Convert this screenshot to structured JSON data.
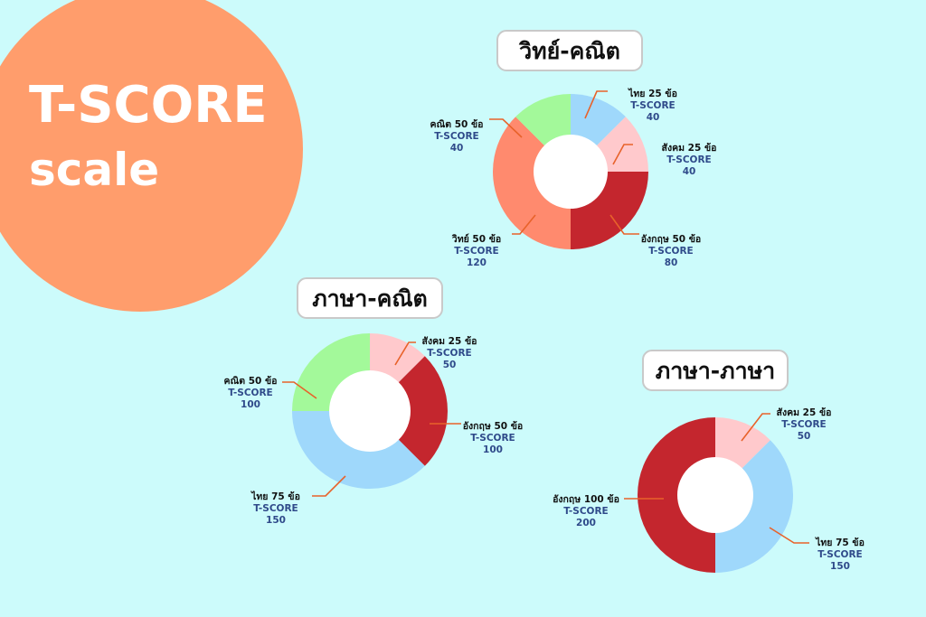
{
  "colors": {
    "background": "#ccfbfb",
    "hero": "#ff9d6c",
    "leader": "#e8622a",
    "thai": "#9fd8fb",
    "social": "#ffc9cc",
    "english": "#c4262e",
    "science": "#ff8a6e",
    "math": "#a3f99a",
    "label_metric": "#2f4a8a"
  },
  "hero": {
    "line1": "T-SCORE",
    "line2": "scale"
  },
  "metric_label": "T-SCORE",
  "chart_data": [
    {
      "type": "pie",
      "title": "วิทย์-คณิต",
      "slices": [
        {
          "label": "ไทย 25 ข้อ",
          "value": 40,
          "color_key": "thai"
        },
        {
          "label": "สังคม 25 ข้อ",
          "value": 40,
          "color_key": "social"
        },
        {
          "label": "อังกฤษ 50 ข้อ",
          "value": 80,
          "color_key": "english"
        },
        {
          "label": "วิทย์ 50 ข้อ",
          "value": 120,
          "color_key": "science"
        },
        {
          "label": "คณิต 50 ข้อ",
          "value": 40,
          "color_key": "math"
        }
      ]
    },
    {
      "type": "pie",
      "title": "ภาษา-คณิต",
      "slices": [
        {
          "label": "สังคม 25 ข้อ",
          "value": 50,
          "color_key": "social"
        },
        {
          "label": "อังกฤษ 50 ข้อ",
          "value": 100,
          "color_key": "english"
        },
        {
          "label": "ไทย 75 ข้อ",
          "value": 150,
          "color_key": "thai"
        },
        {
          "label": "คณิต 50 ข้อ",
          "value": 100,
          "color_key": "math"
        }
      ]
    },
    {
      "type": "pie",
      "title": "ภาษา-ภาษา",
      "slices": [
        {
          "label": "สังคม 25 ข้อ",
          "value": 50,
          "color_key": "social"
        },
        {
          "label": "ไทย 75 ข้อ",
          "value": 150,
          "color_key": "thai"
        },
        {
          "label": "อังกฤษ 100 ข้อ",
          "value": 200,
          "color_key": "english"
        }
      ]
    }
  ]
}
